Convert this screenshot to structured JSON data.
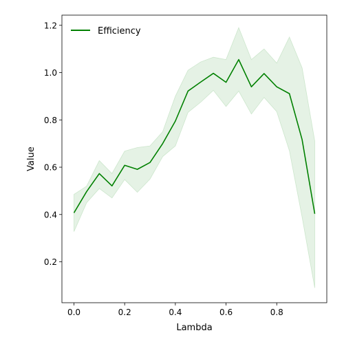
{
  "chart_data": {
    "type": "line",
    "title": "",
    "xlabel": "Lambda",
    "ylabel": "Value",
    "xlim": [
      -0.0475,
      0.9975
    ],
    "ylim": [
      0.027,
      1.243
    ],
    "x_ticks": [
      0.0,
      0.2,
      0.4,
      0.6,
      0.8
    ],
    "x_tick_labels": [
      "0.0",
      "0.2",
      "0.4",
      "0.6",
      "0.8"
    ],
    "y_ticks": [
      0.2,
      0.4,
      0.6,
      0.8,
      1.0,
      1.2
    ],
    "y_tick_labels": [
      "0.2",
      "0.4",
      "0.6",
      "0.8",
      "1.0",
      "1.2"
    ],
    "grid": false,
    "legend": {
      "position": "top-left",
      "entries": [
        "Efficiency"
      ]
    },
    "x": [
      0.0,
      0.05,
      0.1,
      0.15,
      0.2,
      0.25,
      0.3,
      0.35,
      0.4,
      0.45,
      0.5,
      0.55,
      0.6,
      0.65,
      0.7,
      0.75,
      0.8,
      0.85,
      0.9,
      0.95
    ],
    "series": [
      {
        "name": "Efficiency",
        "color": "#008000",
        "band_color": "#cce6cc",
        "values": [
          0.407,
          0.497,
          0.573,
          0.521,
          0.608,
          0.591,
          0.62,
          0.7,
          0.795,
          0.922,
          0.96,
          0.997,
          0.959,
          1.055,
          0.94,
          0.996,
          0.94,
          0.911,
          0.717,
          0.403
        ],
        "lower": [
          0.328,
          0.45,
          0.51,
          0.47,
          0.548,
          0.494,
          0.55,
          0.645,
          0.69,
          0.832,
          0.875,
          0.925,
          0.857,
          0.922,
          0.825,
          0.895,
          0.835,
          0.67,
          0.39,
          0.09
        ],
        "upper": [
          0.485,
          0.52,
          0.628,
          0.573,
          0.668,
          0.683,
          0.69,
          0.75,
          0.9,
          1.01,
          1.045,
          1.065,
          1.055,
          1.19,
          1.055,
          1.1,
          1.04,
          1.15,
          1.02,
          0.71
        ]
      }
    ]
  }
}
